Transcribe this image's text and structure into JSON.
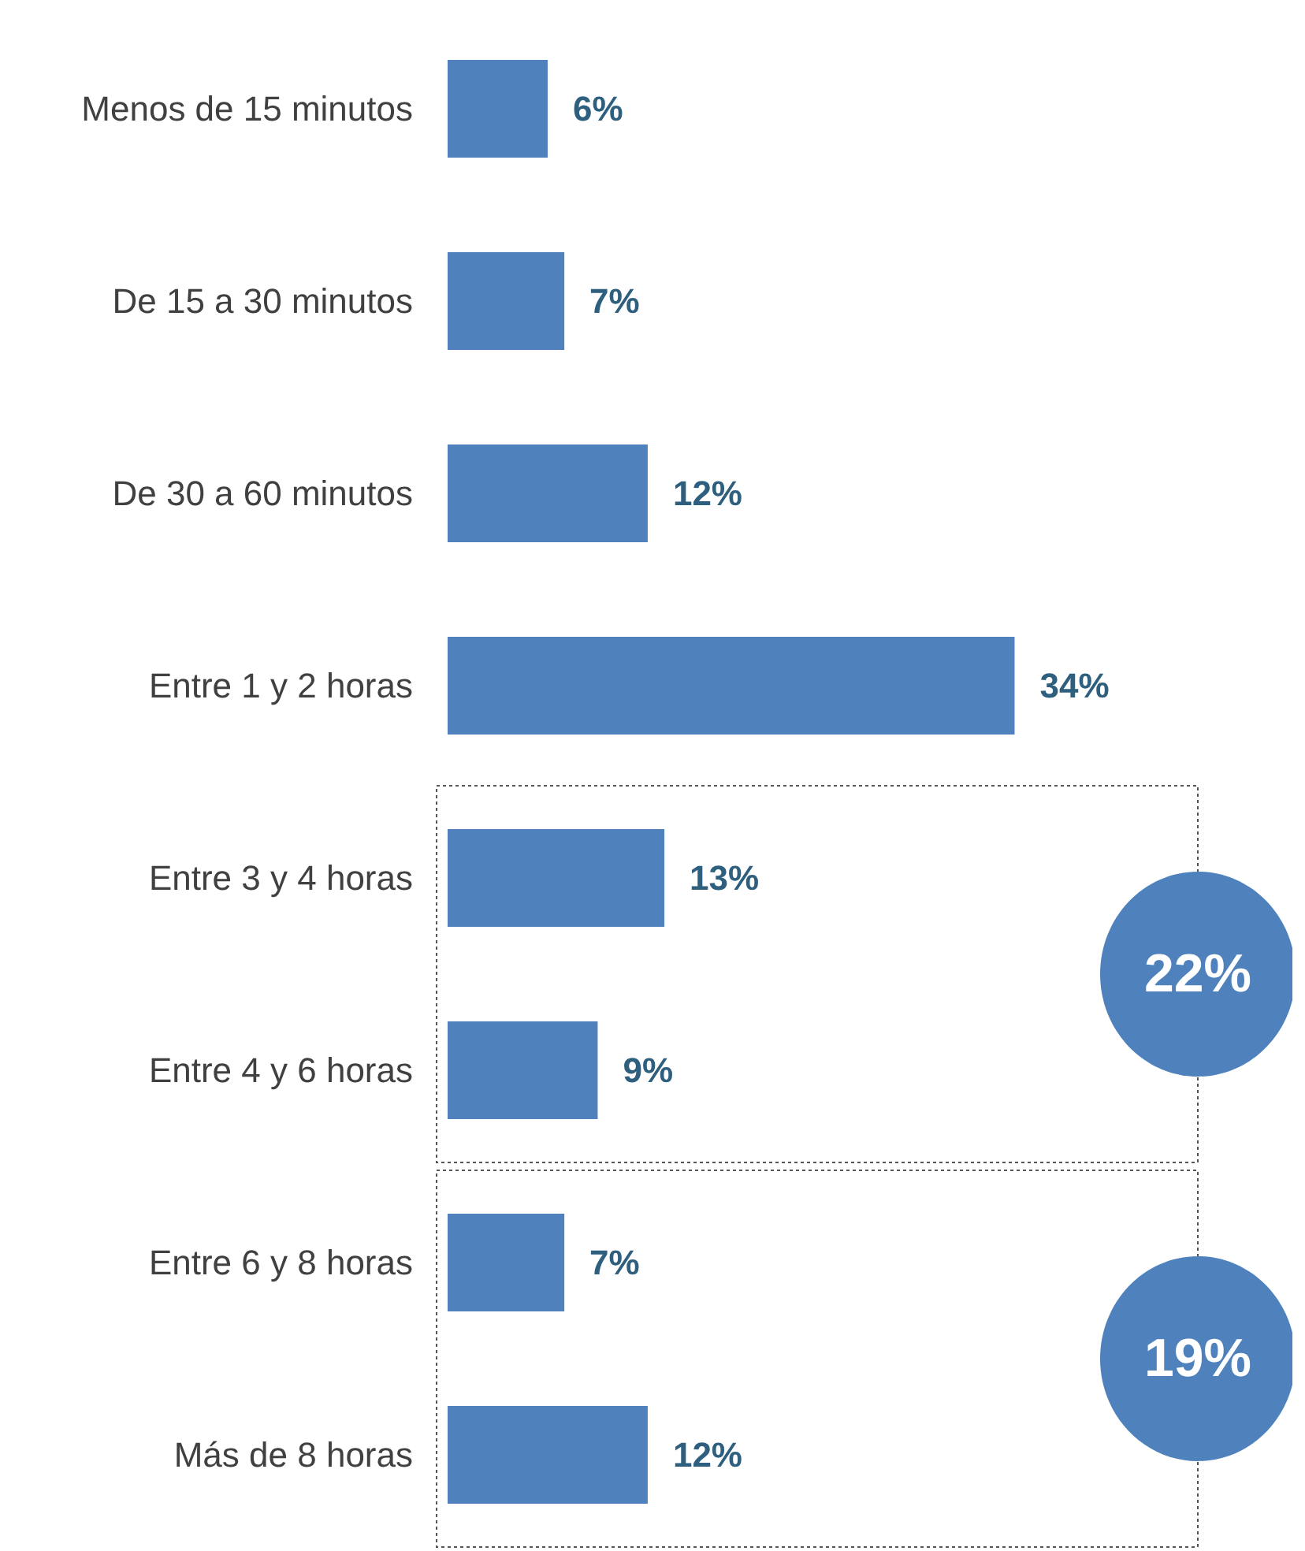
{
  "chart_data": {
    "type": "bar",
    "orientation": "horizontal",
    "categories": [
      "Menos de 15 minutos",
      "De 15 a 30 minutos",
      "De 30 a 60 minutos",
      "Entre 1 y 2 horas",
      "Entre 3 y 4 horas",
      "Entre 4 y 6 horas",
      "Entre 6 y 8 horas",
      "Más de 8 horas"
    ],
    "values": [
      6,
      7,
      12,
      34,
      13,
      9,
      7,
      12
    ],
    "value_labels": [
      "6%",
      "7%",
      "12%",
      "34%",
      "13%",
      "9%",
      "7%",
      "12%"
    ],
    "color": "#4f81bd",
    "annotations": [
      "22%",
      "19%"
    ]
  }
}
